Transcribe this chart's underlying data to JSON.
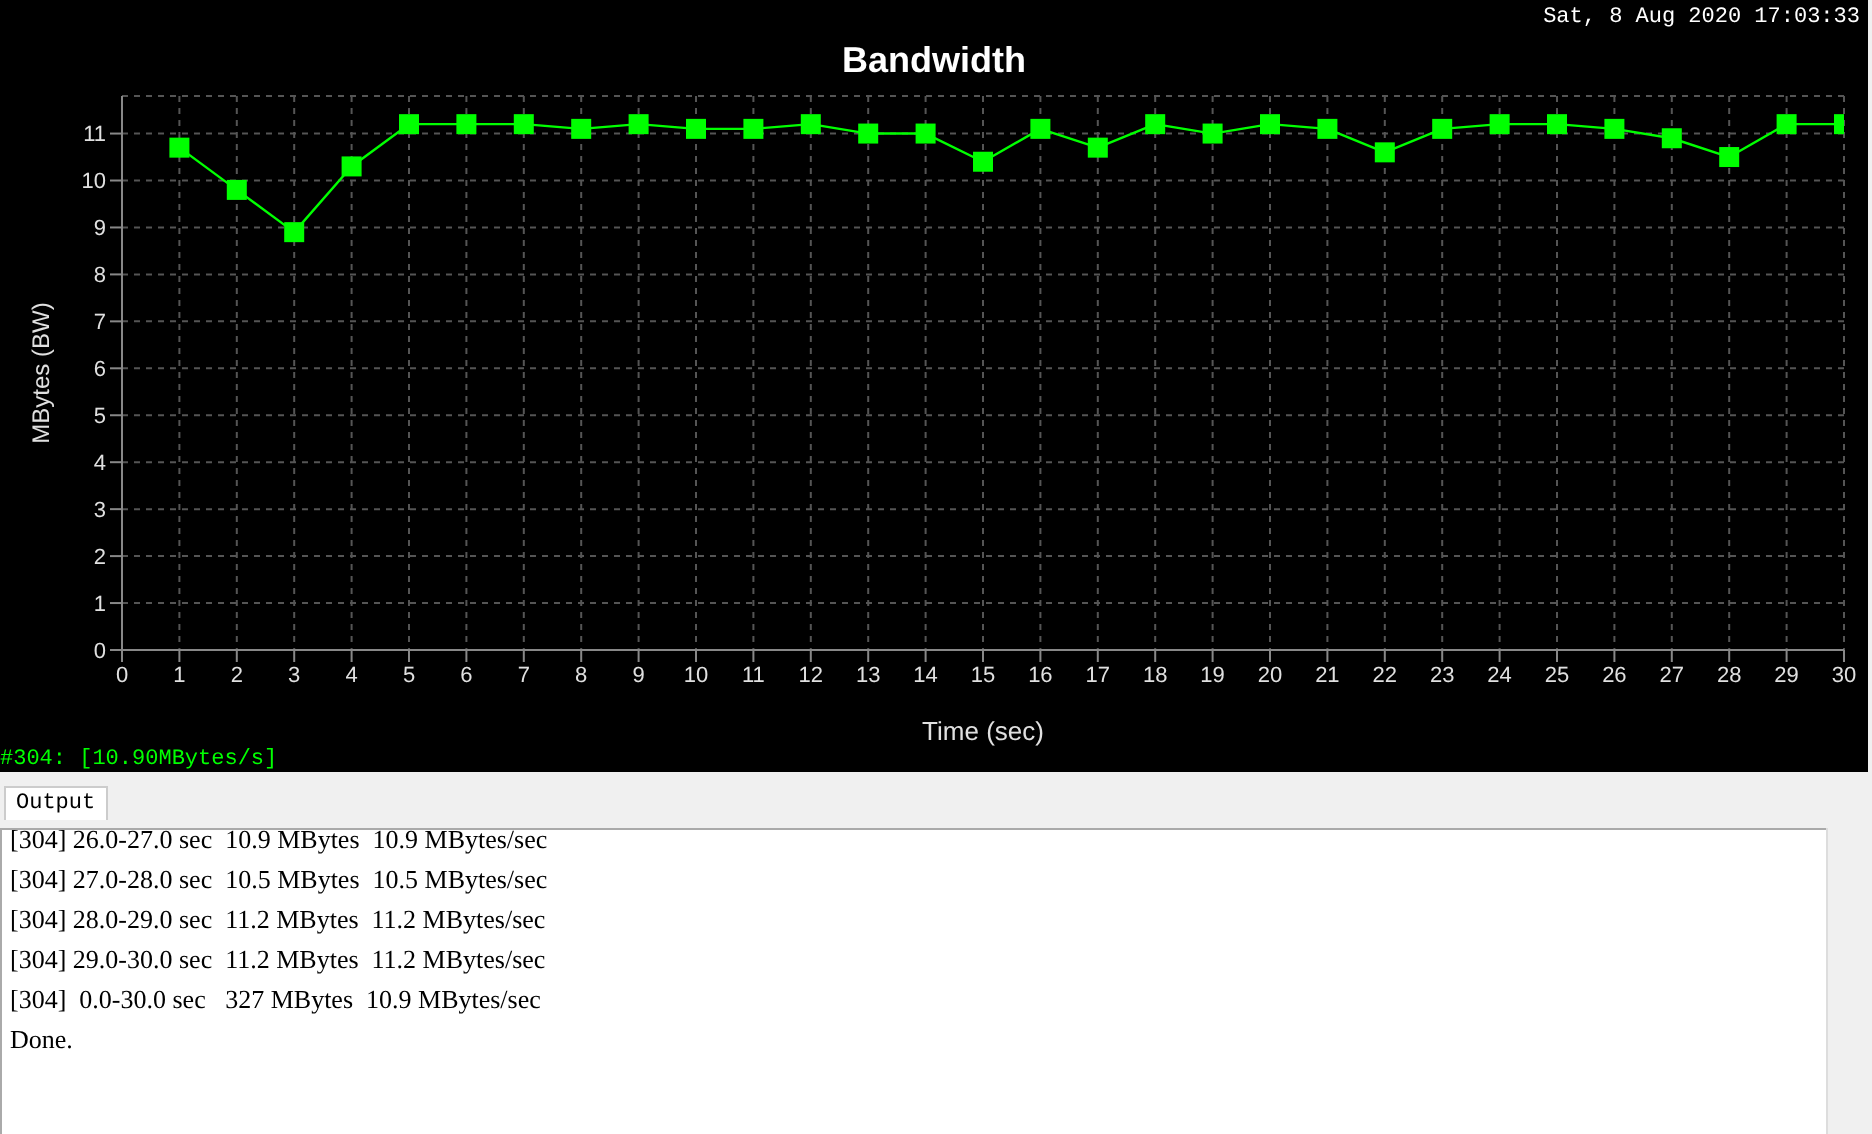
{
  "chart_data": {
    "type": "line",
    "title": "Bandwidth",
    "xlabel": "Time (sec)",
    "ylabel": "MBytes (BW)",
    "x": [
      1,
      2,
      3,
      4,
      5,
      6,
      7,
      8,
      9,
      10,
      11,
      12,
      13,
      14,
      15,
      16,
      17,
      18,
      19,
      20,
      21,
      22,
      23,
      24,
      25,
      26,
      27,
      28,
      29,
      30
    ],
    "series": [
      {
        "color": "#00ff00",
        "values": [
          10.7,
          9.8,
          8.9,
          10.3,
          11.2,
          11.2,
          11.2,
          11.1,
          11.2,
          11.1,
          11.1,
          11.2,
          11.0,
          11.0,
          10.4,
          11.1,
          10.7,
          11.2,
          11.0,
          11.2,
          11.1,
          10.6,
          11.1,
          11.2,
          11.2,
          11.1,
          10.9,
          10.5,
          11.2,
          11.2
        ]
      }
    ],
    "xlim": [
      0,
      30
    ],
    "xticks": [
      0,
      1,
      2,
      3,
      4,
      5,
      6,
      7,
      8,
      9,
      10,
      11,
      12,
      13,
      14,
      15,
      16,
      17,
      18,
      19,
      20,
      21,
      22,
      23,
      24,
      25,
      26,
      27,
      28,
      29,
      30
    ],
    "ylim": [
      0,
      11.8
    ],
    "yticks": [
      0,
      1,
      2,
      3,
      4,
      5,
      6,
      7,
      8,
      9,
      10,
      11
    ],
    "grid": true,
    "marker": "square",
    "line_style": "solid",
    "annotations": [
      "Sat, 8 Aug 2020 17:03:33",
      "#304: [10.90MBytes/s]",
      "Output",
      "[304] 26.0-27.0 sec  10.9 MBytes  10.9 MBytes/sec",
      "[304] 27.0-28.0 sec  10.5 MBytes  10.5 MBytes/sec",
      "[304] 28.0-29.0 sec  11.2 MBytes  11.2 MBytes/sec",
      "[304] 29.0-30.0 sec  11.2 MBytes  11.2 MBytes/sec",
      "[304]  0.0-30.0 sec   327 MBytes  10.9 MBytes/sec",
      "Done."
    ]
  }
}
